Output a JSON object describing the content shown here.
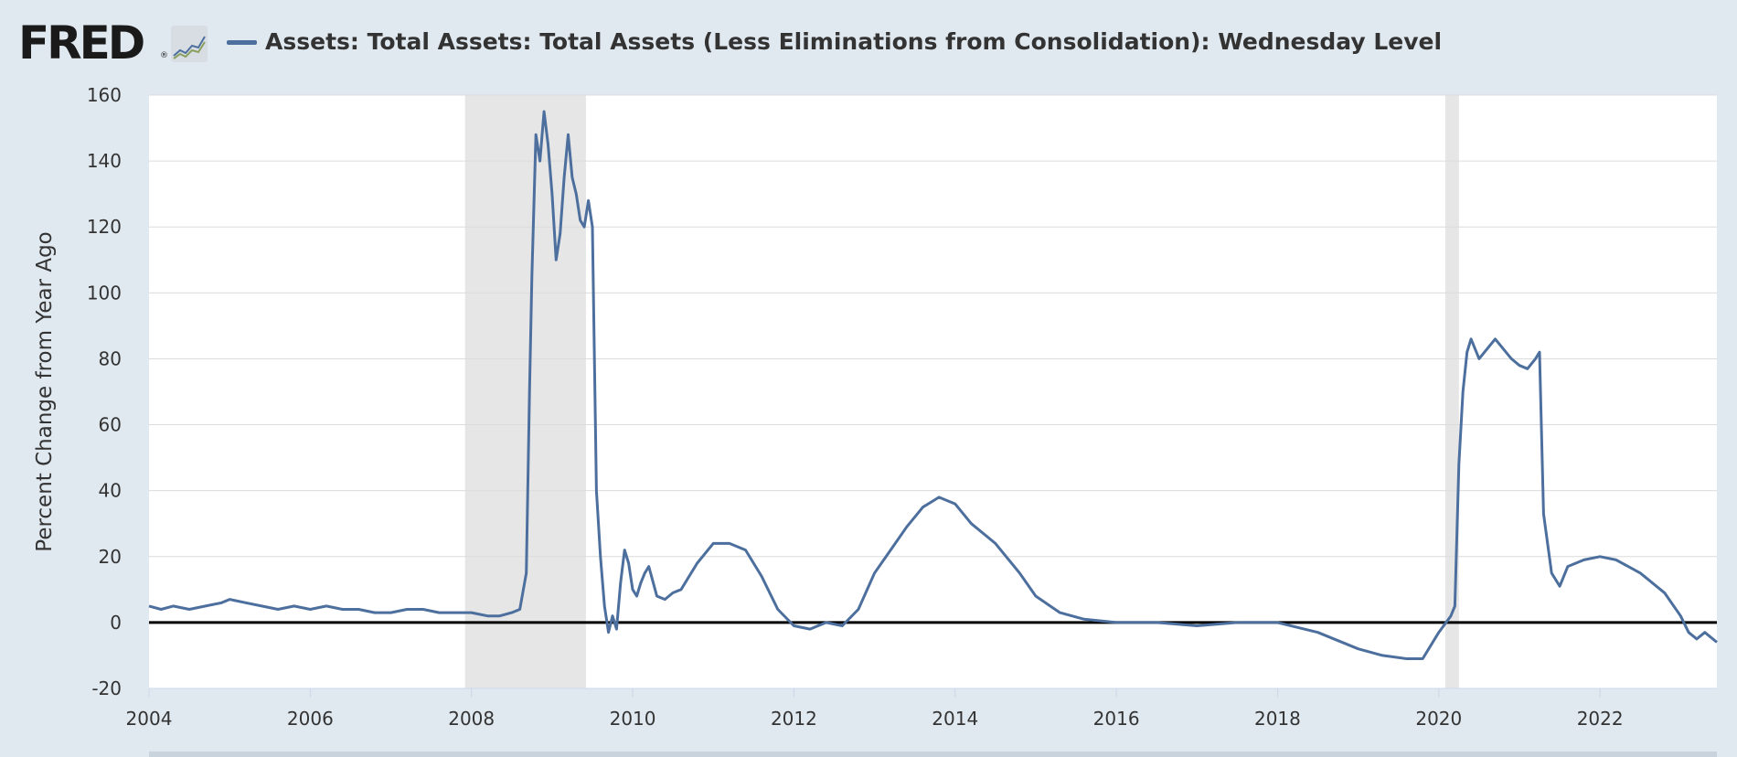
{
  "header": {
    "logo_text": "FRED",
    "logo_reg": "®",
    "series_title": "Assets: Total Assets: Total Assets (Less Eliminations from Consolidation): Wednesday Level"
  },
  "colors": {
    "series": "#4d6f9e",
    "background": "#e1e9f0",
    "plot_bg": "#ffffff",
    "recession": "#e6e6e6",
    "zero_line": "#000000",
    "grid": "#e6e6e6"
  },
  "chart_data": {
    "type": "line",
    "title": "",
    "ylabel": "Percent Change from Year Ago",
    "xlabel": "",
    "xlim": [
      2004.0,
      2023.45
    ],
    "ylim": [
      -20,
      160
    ],
    "yticks": [
      -20,
      0,
      20,
      40,
      60,
      80,
      100,
      120,
      140,
      160
    ],
    "xticks": [
      2004,
      2006,
      2008,
      2010,
      2012,
      2014,
      2016,
      2018,
      2020,
      2022
    ],
    "grid": "horizontal",
    "recessions": [
      [
        2007.92,
        2009.42
      ],
      [
        2020.08,
        2020.25
      ]
    ],
    "series": [
      {
        "name": "Assets: Total Assets: Total Assets (Less Eliminations from Consolidation): Wednesday Level",
        "x": [
          2004.0,
          2004.15,
          2004.3,
          2004.5,
          2004.7,
          2004.9,
          2005.0,
          2005.2,
          2005.4,
          2005.6,
          2005.8,
          2006.0,
          2006.2,
          2006.4,
          2006.6,
          2006.8,
          2007.0,
          2007.2,
          2007.4,
          2007.6,
          2007.8,
          2008.0,
          2008.2,
          2008.35,
          2008.5,
          2008.6,
          2008.68,
          2008.72,
          2008.75,
          2008.8,
          2008.85,
          2008.9,
          2008.95,
          2009.0,
          2009.05,
          2009.1,
          2009.15,
          2009.2,
          2009.25,
          2009.3,
          2009.35,
          2009.4,
          2009.45,
          2009.5,
          2009.55,
          2009.6,
          2009.65,
          2009.7,
          2009.75,
          2009.8,
          2009.85,
          2009.9,
          2009.95,
          2010.0,
          2010.05,
          2010.1,
          2010.15,
          2010.2,
          2010.3,
          2010.4,
          2010.5,
          2010.6,
          2010.7,
          2010.8,
          2011.0,
          2011.2,
          2011.4,
          2011.6,
          2011.8,
          2012.0,
          2012.2,
          2012.4,
          2012.6,
          2012.8,
          2013.0,
          2013.2,
          2013.4,
          2013.6,
          2013.8,
          2014.0,
          2014.2,
          2014.5,
          2014.8,
          2015.0,
          2015.3,
          2015.6,
          2016.0,
          2016.5,
          2017.0,
          2017.5,
          2018.0,
          2018.5,
          2019.0,
          2019.3,
          2019.6,
          2019.8,
          2020.0,
          2020.15,
          2020.2,
          2020.25,
          2020.3,
          2020.35,
          2020.4,
          2020.5,
          2020.7,
          2020.9,
          2021.0,
          2021.1,
          2021.2,
          2021.25,
          2021.3,
          2021.4,
          2021.5,
          2021.6,
          2021.8,
          2022.0,
          2022.2,
          2022.5,
          2022.8,
          2023.0,
          2023.1,
          2023.2,
          2023.3,
          2023.45
        ],
        "y": [
          5,
          4,
          5,
          4,
          5,
          6,
          7,
          6,
          5,
          4,
          5,
          4,
          5,
          4,
          4,
          3,
          3,
          4,
          4,
          3,
          3,
          3,
          2,
          2,
          3,
          4,
          15,
          70,
          105,
          148,
          140,
          155,
          145,
          130,
          110,
          118,
          135,
          148,
          135,
          130,
          122,
          120,
          128,
          120,
          40,
          20,
          5,
          -3,
          2,
          -2,
          12,
          22,
          18,
          10,
          8,
          12,
          15,
          17,
          8,
          7,
          9,
          10,
          14,
          18,
          24,
          24,
          22,
          14,
          4,
          -1,
          -2,
          0,
          -1,
          4,
          15,
          22,
          29,
          35,
          38,
          36,
          30,
          24,
          15,
          8,
          3,
          1,
          0,
          0,
          -1,
          0,
          0,
          -3,
          -8,
          -10,
          -11,
          -11,
          -3,
          2,
          5,
          48,
          70,
          82,
          86,
          80,
          86,
          80,
          78,
          77,
          80,
          82,
          33,
          15,
          11,
          17,
          19,
          20,
          19,
          15,
          9,
          2,
          -3,
          -5,
          -3,
          -6
        ]
      }
    ]
  }
}
